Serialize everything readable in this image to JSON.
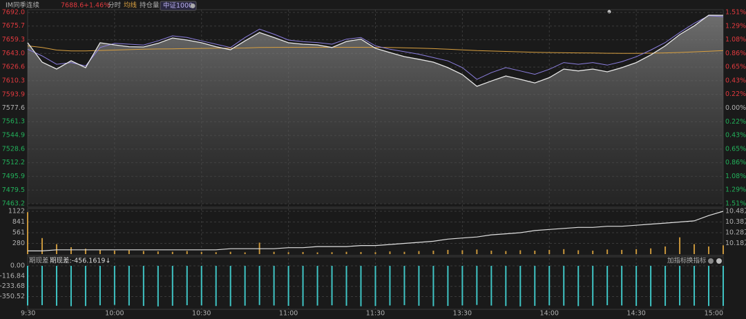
{
  "chart_data": [
    {
      "type": "line",
      "header": {
        "price": "7688.6",
        "change": "+1.46%",
        "mode": "分时"
      },
      "x": [
        0,
        5,
        10,
        15,
        20,
        25,
        30,
        35,
        40,
        45,
        50,
        55,
        60,
        65,
        70,
        75,
        80,
        85,
        90,
        95,
        100,
        105,
        110,
        115,
        120,
        125,
        130,
        135,
        140,
        145,
        150,
        155,
        160,
        165,
        170,
        175,
        180,
        185,
        190,
        195,
        200,
        205,
        210,
        215,
        220,
        225,
        230,
        235,
        240
      ],
      "xlim": [
        0,
        240
      ],
      "xticks": [
        {
          "value": 0,
          "label": "9:30"
        },
        {
          "value": 30,
          "label": "10:00"
        },
        {
          "value": 60,
          "label": "10:30"
        },
        {
          "value": 90,
          "label": "11:00"
        },
        {
          "value": 120,
          "label": "11:30"
        },
        {
          "value": 150,
          "label": "13:30"
        },
        {
          "value": 180,
          "label": "14:00"
        },
        {
          "value": 210,
          "label": "14:30"
        },
        {
          "value": 240,
          "label": "15:00"
        }
      ],
      "ylim": [
        7463.2,
        7692.0
      ],
      "yticks": [
        {
          "value": 7692,
          "label": "7692.0"
        },
        7675.7,
        7659.3,
        {
          "value": 7643,
          "label": "7643.0"
        },
        7626.6,
        7610.3,
        7593.9,
        7577.6,
        7561.3,
        7544.9,
        7528.6,
        7512.2,
        7495.9,
        7479.5,
        7463.2
      ],
      "y2lim": [
        -1.51,
        1.51
      ],
      "y2ticks": [
        {
          "value": 1.51,
          "label": "1.51%"
        },
        {
          "value": 1.29,
          "label": "1.29%"
        },
        {
          "value": 1.08,
          "label": "1.08%"
        },
        {
          "value": 0.86,
          "label": "0.86%"
        },
        {
          "value": 0.65,
          "label": "0.65%"
        },
        {
          "value": 0.43,
          "label": "0.43%"
        },
        {
          "value": 0.22,
          "label": "0.22%"
        },
        {
          "value": 0,
          "label": "0.00%"
        },
        {
          "value": -0.22,
          "label": "0.22%"
        },
        {
          "value": -0.43,
          "label": "0.43%"
        },
        {
          "value": -0.65,
          "label": "0.65%"
        },
        {
          "value": -0.86,
          "label": "0.86%"
        },
        {
          "value": -1.08,
          "label": "1.08%"
        },
        {
          "value": -1.29,
          "label": "1.29%"
        },
        {
          "value": -1.51,
          "label": "1.51%"
        }
      ],
      "grid": true,
      "series": [
        {
          "name": "IM同季连续",
          "color": "#e8e8e8",
          "values": [
            7655.7,
            7632.5,
            7624.3,
            7634.2,
            7625.9,
            7655.7,
            7653.2,
            7651.0,
            7650.7,
            7655.0,
            7661.4,
            7659.0,
            7655.7,
            7651.0,
            7647.4,
            7658.0,
            7668.0,
            7662.0,
            7655.7,
            7654.0,
            7653.2,
            7650.0,
            7657.3,
            7660.0,
            7649.1,
            7644.0,
            7639.1,
            7636.0,
            7632.5,
            7626.0,
            7617.7,
            7603.6,
            7610.0,
            7616.0,
            7612.0,
            7607.7,
            7614.0,
            7624.3,
            7622.0,
            7624.3,
            7621.0,
            7625.9,
            7632.0,
            7641.1,
            7652.0,
            7665.6,
            7676.0,
            7688.7,
            7688.6
          ]
        },
        {
          "name": "中证1000",
          "color": "#8c7fe0",
          "values": [
            7648,
            7640,
            7630,
            7632,
            7628,
            7650,
            7655,
            7654,
            7653,
            7658,
            7664,
            7662,
            7658,
            7654,
            7650,
            7662,
            7672,
            7666,
            7659,
            7657,
            7656,
            7654,
            7660,
            7662,
            7652,
            7648,
            7645,
            7642,
            7638,
            7634,
            7626,
            7612,
            7620,
            7626,
            7622,
            7618,
            7624,
            7632,
            7630,
            7632,
            7629,
            7633,
            7639,
            7647,
            7656,
            7668,
            7679,
            7688,
            7687
          ]
        },
        {
          "name": "均线",
          "color": "#d9a040",
          "values": [
            7652,
            7650,
            7647,
            7646,
            7646,
            7646.5,
            7647,
            7647.5,
            7648,
            7648.3,
            7648.5,
            7648.7,
            7649,
            7649.2,
            7649.3,
            7649.5,
            7650,
            7650.2,
            7650.3,
            7650.3,
            7650.3,
            7650.3,
            7650.3,
            7650.3,
            7650.2,
            7650,
            7649.6,
            7649.2,
            7648.7,
            7648,
            7647.2,
            7646.3,
            7645.8,
            7645.3,
            7644.8,
            7644.3,
            7644,
            7643.8,
            7643.6,
            7643.4,
            7643.2,
            7643.1,
            7643.1,
            7643.3,
            7643.6,
            7644.1,
            7644.8,
            7645.6,
            7646.4
          ]
        }
      ]
    },
    {
      "type": "bar",
      "ylim": [
        0,
        1122
      ],
      "yticks": [
        280,
        561,
        841,
        1122
      ],
      "y2lim": [
        10.08,
        10.48
      ],
      "y2ticks": [
        {
          "value": 10.48,
          "label": "10.48万"
        },
        {
          "value": 10.38,
          "label": "10.38万"
        },
        {
          "value": 10.28,
          "label": "10.28万"
        },
        {
          "value": 10.18,
          "label": "10.18万"
        }
      ],
      "series": [
        {
          "color": "#c8963c",
          "values": [
            1100,
            420,
            260,
            180,
            140,
            110,
            90,
            100,
            80,
            70,
            60,
            80,
            55,
            50,
            60,
            45,
            300,
            60,
            50,
            55,
            45,
            50,
            60,
            55,
            50,
            70,
            60,
            80,
            90,
            110,
            100,
            120,
            90,
            80,
            100,
            90,
            110,
            130,
            100,
            90,
            120,
            110,
            130,
            150,
            200,
            440,
            260,
            200,
            230
          ]
        },
        {
          "name": "持仓量",
          "color": "#e0e0e0",
          "axis": "y2",
          "values": [
            10.11,
            10.11,
            10.12,
            10.12,
            10.12,
            10.12,
            10.12,
            10.12,
            10.12,
            10.12,
            10.12,
            10.12,
            10.12,
            10.12,
            10.13,
            10.13,
            10.13,
            10.13,
            10.14,
            10.14,
            10.15,
            10.15,
            10.15,
            10.16,
            10.16,
            10.17,
            10.18,
            10.19,
            10.2,
            10.22,
            10.23,
            10.24,
            10.26,
            10.27,
            10.28,
            10.3,
            10.31,
            10.32,
            10.33,
            10.33,
            10.34,
            10.34,
            10.35,
            10.36,
            10.37,
            10.38,
            10.39,
            10.44,
            10.48
          ]
        }
      ]
    },
    {
      "type": "bar",
      "title": "期现差",
      "legend_label": "期现差:-456.1619↓",
      "buttons": [
        "加指标",
        "换指标"
      ],
      "ylim": [
        -480,
        0
      ],
      "yticks": [
        {
          "value": 0,
          "label": "0.00"
        },
        -116.84,
        -233.68,
        -350.52
      ],
      "series": [
        {
          "color": "#3fc4c4",
          "values": [
            -452,
            -448,
            -455,
            -460,
            -458,
            -450,
            -445,
            -452,
            -457,
            -462,
            -455,
            -449,
            -451,
            -458,
            -460,
            -454,
            -447,
            -452,
            -456,
            -459,
            -453,
            -450,
            -455,
            -461,
            -458,
            -452,
            -448,
            -455,
            -460,
            -457,
            -451,
            -446,
            -453,
            -458,
            -462,
            -456,
            -450,
            -454,
            -459,
            -455,
            -449,
            -452,
            -457,
            -461,
            -456,
            -451,
            -454,
            -458,
            -456
          ]
        }
      ]
    }
  ]
}
